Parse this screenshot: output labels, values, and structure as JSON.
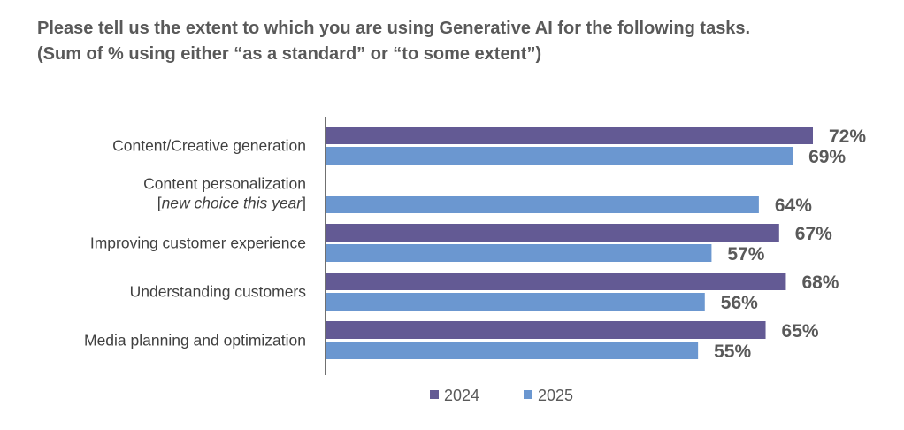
{
  "chart_data": {
    "type": "bar",
    "orientation": "horizontal",
    "title": "Please tell us the extent to which you are using Generative AI for the following tasks.",
    "subtitle": "(Sum of % using either “as a standard” or “to some extent”)",
    "categories": [
      {
        "label": "Content/Creative generation",
        "note": ""
      },
      {
        "label": "Content personalization",
        "note": "new choice this year"
      },
      {
        "label": "Improving customer experience",
        "note": ""
      },
      {
        "label": "Understanding customers",
        "note": ""
      },
      {
        "label": "Media planning and optimization",
        "note": ""
      }
    ],
    "series": [
      {
        "name": "2024",
        "color": "#635a94",
        "values": [
          72,
          null,
          67,
          68,
          65
        ]
      },
      {
        "name": "2025",
        "color": "#6b97d0",
        "values": [
          69,
          64,
          57,
          56,
          55
        ]
      }
    ],
    "value_suffix": "%",
    "xlim": [
      0,
      72
    ],
    "grid": false,
    "legend": "bottom-center"
  }
}
